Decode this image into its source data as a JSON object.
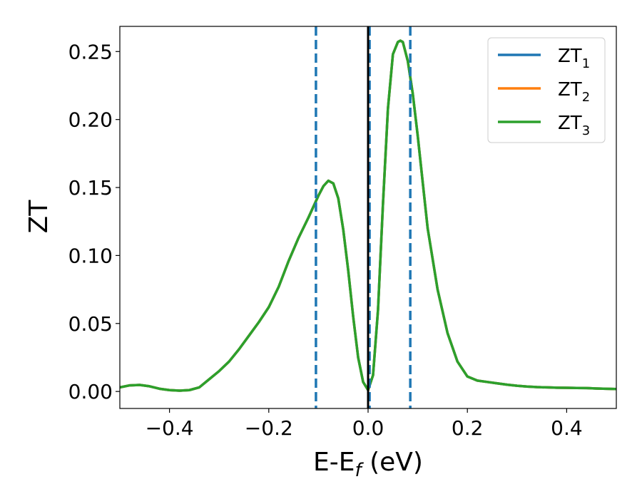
{
  "chart_data": {
    "type": "line",
    "xlabel": {
      "main": "E-E",
      "sub": "f",
      "suffix": " (eV)"
    },
    "ylabel": "ZT",
    "xlim": [
      -0.5,
      0.5
    ],
    "ylim": [
      -0.0125,
      0.2685
    ],
    "x_ticks": [
      -0.4,
      -0.2,
      0.0,
      0.2,
      0.4
    ],
    "x_tick_labels": [
      "−0.4",
      "−0.2",
      "0.0",
      "0.2",
      "0.4"
    ],
    "y_ticks": [
      0.0,
      0.05,
      0.1,
      0.15,
      0.2,
      0.25
    ],
    "y_tick_labels": [
      "0.00",
      "0.05",
      "0.10",
      "0.15",
      "0.20",
      "0.25"
    ],
    "grid": false,
    "legend_position": "top-right",
    "colors": {
      "ZT1": "#1f77b4",
      "ZT2": "#ff7f0e",
      "ZT3": "#2ca02c"
    },
    "x": [
      -0.5,
      -0.48,
      -0.46,
      -0.44,
      -0.42,
      -0.4,
      -0.38,
      -0.36,
      -0.34,
      -0.32,
      -0.3,
      -0.28,
      -0.26,
      -0.24,
      -0.22,
      -0.2,
      -0.18,
      -0.16,
      -0.14,
      -0.12,
      -0.1,
      -0.09,
      -0.08,
      -0.07,
      -0.06,
      -0.05,
      -0.04,
      -0.03,
      -0.02,
      -0.01,
      0.0,
      0.01,
      0.02,
      0.03,
      0.04,
      0.05,
      0.06,
      0.065,
      0.07,
      0.08,
      0.09,
      0.1,
      0.11,
      0.12,
      0.14,
      0.16,
      0.18,
      0.2,
      0.22,
      0.24,
      0.26,
      0.28,
      0.3,
      0.32,
      0.34,
      0.36,
      0.38,
      0.4,
      0.42,
      0.44,
      0.46,
      0.48,
      0.5
    ],
    "series": [
      {
        "name": {
          "main": "ZT",
          "sub": "1"
        },
        "values": [
          0.003,
          0.0045,
          0.0048,
          0.0038,
          0.002,
          0.001,
          0.0006,
          0.001,
          0.003,
          0.009,
          0.015,
          0.022,
          0.031,
          0.041,
          0.051,
          0.062,
          0.077,
          0.096,
          0.113,
          0.128,
          0.144,
          0.151,
          0.155,
          0.153,
          0.142,
          0.119,
          0.089,
          0.055,
          0.025,
          0.007,
          0.001,
          0.012,
          0.06,
          0.138,
          0.208,
          0.248,
          0.257,
          0.258,
          0.257,
          0.243,
          0.219,
          0.188,
          0.154,
          0.12,
          0.075,
          0.043,
          0.022,
          0.011,
          0.008,
          0.007,
          0.006,
          0.005,
          0.0042,
          0.0036,
          0.0032,
          0.003,
          0.0028,
          0.0027,
          0.0026,
          0.0025,
          0.0022,
          0.002,
          0.0018
        ]
      },
      {
        "name": {
          "main": "ZT",
          "sub": "2"
        },
        "values": [
          0.003,
          0.0045,
          0.0048,
          0.0038,
          0.002,
          0.001,
          0.0006,
          0.001,
          0.003,
          0.009,
          0.015,
          0.022,
          0.031,
          0.041,
          0.051,
          0.062,
          0.077,
          0.096,
          0.113,
          0.128,
          0.144,
          0.151,
          0.155,
          0.153,
          0.142,
          0.119,
          0.089,
          0.055,
          0.025,
          0.007,
          0.001,
          0.012,
          0.06,
          0.138,
          0.208,
          0.248,
          0.257,
          0.258,
          0.257,
          0.243,
          0.219,
          0.188,
          0.154,
          0.12,
          0.075,
          0.043,
          0.022,
          0.011,
          0.008,
          0.007,
          0.006,
          0.005,
          0.0042,
          0.0036,
          0.0032,
          0.003,
          0.0028,
          0.0027,
          0.0026,
          0.0025,
          0.0022,
          0.002,
          0.0018
        ]
      },
      {
        "name": {
          "main": "ZT",
          "sub": "3"
        },
        "values": [
          0.003,
          0.0045,
          0.0048,
          0.0038,
          0.002,
          0.001,
          0.0006,
          0.001,
          0.003,
          0.009,
          0.015,
          0.022,
          0.031,
          0.041,
          0.051,
          0.062,
          0.077,
          0.096,
          0.113,
          0.128,
          0.144,
          0.151,
          0.155,
          0.153,
          0.142,
          0.119,
          0.089,
          0.055,
          0.025,
          0.007,
          0.001,
          0.012,
          0.06,
          0.138,
          0.208,
          0.248,
          0.257,
          0.258,
          0.257,
          0.243,
          0.219,
          0.188,
          0.154,
          0.12,
          0.075,
          0.043,
          0.022,
          0.011,
          0.008,
          0.007,
          0.006,
          0.005,
          0.0042,
          0.0036,
          0.0032,
          0.003,
          0.0028,
          0.0027,
          0.0026,
          0.0025,
          0.0022,
          0.002,
          0.0018
        ]
      }
    ],
    "vlines": [
      {
        "x": -0.105,
        "style": "dashed",
        "color": "#1f77b4"
      },
      {
        "x": 0.003,
        "style": "dashed",
        "color": "#1f77b4"
      },
      {
        "x": 0.085,
        "style": "dashed",
        "color": "#1f77b4"
      },
      {
        "x": 0.0,
        "style": "solid",
        "color": "#000000"
      }
    ]
  }
}
